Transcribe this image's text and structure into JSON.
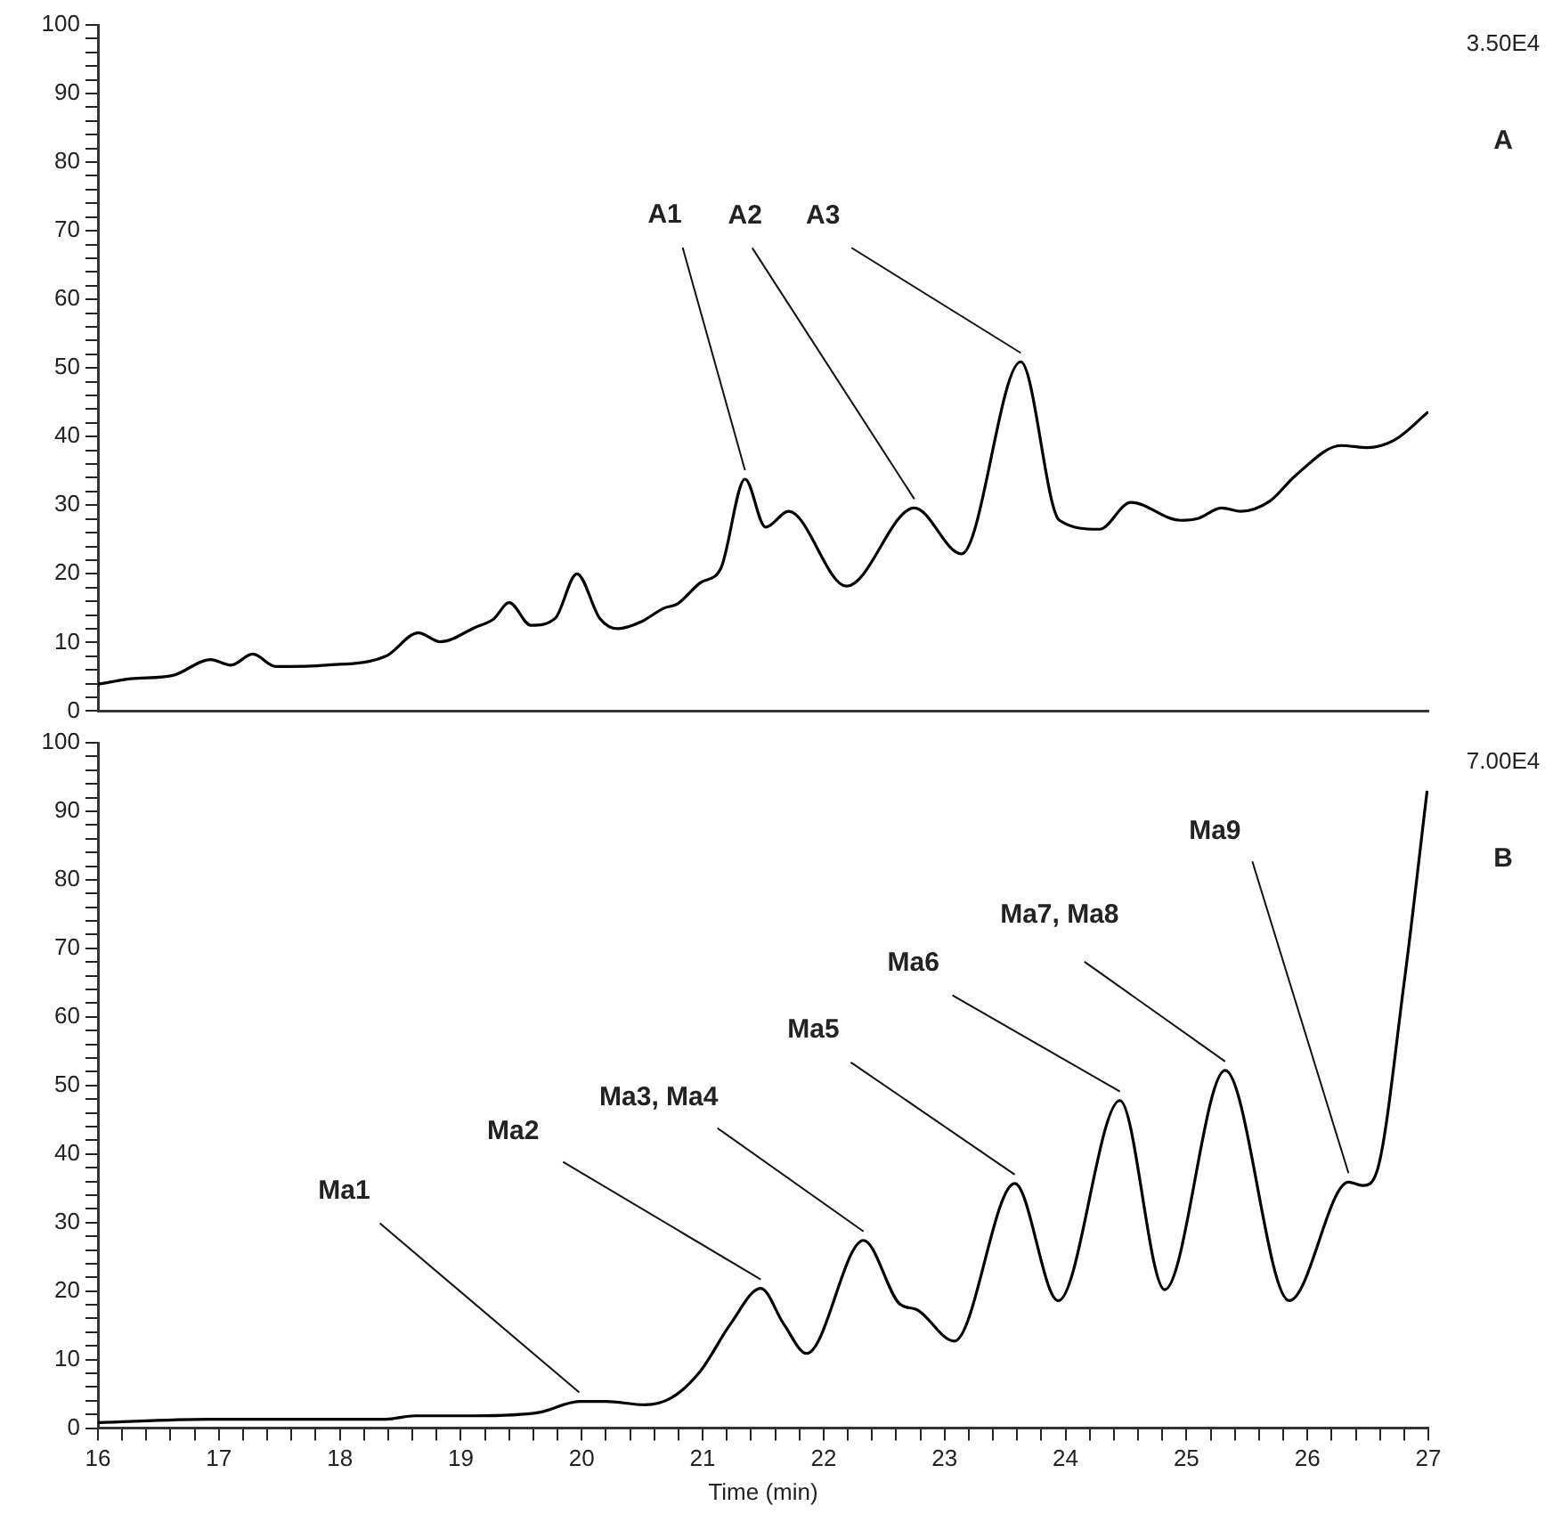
{
  "chart_data": [
    {
      "type": "line",
      "xlim": [
        16,
        27
      ],
      "ylim": [
        0,
        100
      ],
      "tick_labels": "y",
      "grid": false,
      "legend": false,
      "marker": "none",
      "line_style": "solid",
      "yticks": [
        0,
        {
          "value": 2,
          "label": null
        },
        {
          "value": 4,
          "label": null
        },
        {
          "value": 6,
          "label": null
        },
        {
          "value": 8,
          "label": null
        },
        10,
        {
          "value": 12,
          "label": null
        },
        {
          "value": 14,
          "label": null
        },
        {
          "value": 16,
          "label": null
        },
        {
          "value": 18,
          "label": null
        },
        20,
        {
          "value": 22,
          "label": null
        },
        {
          "value": 24,
          "label": null
        },
        {
          "value": 26,
          "label": null
        },
        {
          "value": 28,
          "label": null
        },
        30,
        {
          "value": 32,
          "label": null
        },
        {
          "value": 34,
          "label": null
        },
        {
          "value": 36,
          "label": null
        },
        {
          "value": 38,
          "label": null
        },
        40,
        {
          "value": 42,
          "label": null
        },
        {
          "value": 44,
          "label": null
        },
        {
          "value": 46,
          "label": null
        },
        {
          "value": 48,
          "label": null
        },
        50,
        {
          "value": 52,
          "label": null
        },
        {
          "value": 54,
          "label": null
        },
        {
          "value": 56,
          "label": null
        },
        {
          "value": 58,
          "label": null
        },
        60,
        {
          "value": 62,
          "label": null
        },
        {
          "value": 64,
          "label": null
        },
        {
          "value": 66,
          "label": null
        },
        {
          "value": 68,
          "label": null
        },
        70,
        {
          "value": 72,
          "label": null
        },
        {
          "value": 74,
          "label": null
        },
        {
          "value": 76,
          "label": null
        },
        {
          "value": 78,
          "label": null
        },
        80,
        {
          "value": 82,
          "label": null
        },
        {
          "value": 84,
          "label": null
        },
        {
          "value": 86,
          "label": null
        },
        {
          "value": 88,
          "label": null
        },
        90,
        {
          "value": 92,
          "label": null
        },
        {
          "value": 94,
          "label": null
        },
        {
          "value": 96,
          "label": null
        },
        {
          "value": 98,
          "label": null
        },
        100
      ],
      "series": [
        {
          "color": "#000000",
          "x": [
            16,
            16.27,
            16.62,
            16.93,
            17.1,
            17.28,
            17.47,
            17.89,
            18.38,
            18.65,
            18.83,
            19.12,
            19.27,
            19.4,
            19.58,
            19.78,
            19.96,
            20.15,
            20.3,
            20.49,
            20.68,
            20.79,
            20.98,
            21.15,
            21.35,
            21.52,
            21.71,
            22.19,
            22.75,
            23.14,
            23.63,
            23.95,
            24.28,
            24.54,
            24.95,
            25.1,
            25.29,
            25.45,
            25.69,
            25.9,
            26.28,
            26.49,
            26.72,
            27
          ],
          "values": [
            3.9,
            4.7,
            5.2,
            7.5,
            6.7,
            8.3,
            6.5,
            6.7,
            8,
            11.4,
            10.1,
            12.2,
            13.4,
            15.8,
            12.5,
            13.5,
            20,
            13.5,
            12,
            13,
            15,
            15.6,
            18.7,
            20.8,
            33.8,
            26.8,
            29.1,
            18.2,
            29.6,
            22.9,
            50.9,
            27.8,
            26.5,
            30.4,
            27.8,
            28.1,
            29.6,
            29.1,
            30.6,
            34.3,
            38.7,
            38.4,
            39.5,
            43.6
          ]
        }
      ],
      "annotations": [
        "3.50E4",
        "A",
        {
          "text": "A1",
          "x": 21.35,
          "y": 33.8
        },
        {
          "text": "A2",
          "x": 22.75,
          "y": 29.6
        },
        {
          "text": "A3",
          "x": 23.63,
          "y": 50.9
        }
      ]
    },
    {
      "type": "line",
      "xlim": [
        16,
        27
      ],
      "ylim": [
        0,
        100
      ],
      "xlabel": "Time (min)",
      "grid": false,
      "legend": false,
      "marker": "none",
      "line_style": "solid",
      "xticks": [
        16,
        {
          "value": 16.2,
          "label": null
        },
        {
          "value": 16.4,
          "label": null
        },
        {
          "value": 16.6,
          "label": null
        },
        {
          "value": 16.8,
          "label": null
        },
        17,
        {
          "value": 17.2,
          "label": null
        },
        {
          "value": 17.4,
          "label": null
        },
        {
          "value": 17.6,
          "label": null
        },
        {
          "value": 17.8,
          "label": null
        },
        18,
        {
          "value": 18.2,
          "label": null
        },
        {
          "value": 18.4,
          "label": null
        },
        {
          "value": 18.6,
          "label": null
        },
        {
          "value": 18.8,
          "label": null
        },
        19,
        {
          "value": 19.2,
          "label": null
        },
        {
          "value": 19.4,
          "label": null
        },
        {
          "value": 19.6,
          "label": null
        },
        {
          "value": 19.8,
          "label": null
        },
        20,
        {
          "value": 20.2,
          "label": null
        },
        {
          "value": 20.4,
          "label": null
        },
        {
          "value": 20.6,
          "label": null
        },
        {
          "value": 20.8,
          "label": null
        },
        21,
        {
          "value": 21.2,
          "label": null
        },
        {
          "value": 21.4,
          "label": null
        },
        {
          "value": 21.6,
          "label": null
        },
        {
          "value": 21.8,
          "label": null
        },
        22,
        {
          "value": 22.2,
          "label": null
        },
        {
          "value": 22.4,
          "label": null
        },
        {
          "value": 22.6,
          "label": null
        },
        {
          "value": 22.8,
          "label": null
        },
        23,
        {
          "value": 23.2,
          "label": null
        },
        {
          "value": 23.4,
          "label": null
        },
        {
          "value": 23.6,
          "label": null
        },
        {
          "value": 23.8,
          "label": null
        },
        24,
        {
          "value": 24.2,
          "label": null
        },
        {
          "value": 24.4,
          "label": null
        },
        {
          "value": 24.6,
          "label": null
        },
        {
          "value": 24.8,
          "label": null
        },
        25,
        {
          "value": 25.2,
          "label": null
        },
        {
          "value": 25.4,
          "label": null
        },
        {
          "value": 25.6,
          "label": null
        },
        {
          "value": 25.8,
          "label": null
        },
        26,
        {
          "value": 26.2,
          "label": null
        },
        {
          "value": 26.4,
          "label": null
        },
        {
          "value": 26.6,
          "label": null
        },
        {
          "value": 26.8,
          "label": null
        },
        27
      ],
      "yticks": [
        0,
        {
          "value": 2,
          "label": null
        },
        {
          "value": 4,
          "label": null
        },
        {
          "value": 6,
          "label": null
        },
        {
          "value": 8,
          "label": null
        },
        10,
        {
          "value": 12,
          "label": null
        },
        {
          "value": 14,
          "label": null
        },
        {
          "value": 16,
          "label": null
        },
        {
          "value": 18,
          "label": null
        },
        20,
        {
          "value": 22,
          "label": null
        },
        {
          "value": 24,
          "label": null
        },
        {
          "value": 26,
          "label": null
        },
        {
          "value": 28,
          "label": null
        },
        30,
        {
          "value": 32,
          "label": null
        },
        {
          "value": 34,
          "label": null
        },
        {
          "value": 36,
          "label": null
        },
        {
          "value": 38,
          "label": null
        },
        40,
        {
          "value": 42,
          "label": null
        },
        {
          "value": 44,
          "label": null
        },
        {
          "value": 46,
          "label": null
        },
        {
          "value": 48,
          "label": null
        },
        50,
        {
          "value": 52,
          "label": null
        },
        {
          "value": 54,
          "label": null
        },
        {
          "value": 56,
          "label": null
        },
        {
          "value": 58,
          "label": null
        },
        60,
        {
          "value": 62,
          "label": null
        },
        {
          "value": 64,
          "label": null
        },
        {
          "value": 66,
          "label": null
        },
        {
          "value": 68,
          "label": null
        },
        70,
        {
          "value": 72,
          "label": null
        },
        {
          "value": 74,
          "label": null
        },
        {
          "value": 76,
          "label": null
        },
        {
          "value": 78,
          "label": null
        },
        80,
        {
          "value": 82,
          "label": null
        },
        {
          "value": 84,
          "label": null
        },
        {
          "value": 86,
          "label": null
        },
        {
          "value": 88,
          "label": null
        },
        90,
        {
          "value": 92,
          "label": null
        },
        {
          "value": 94,
          "label": null
        },
        {
          "value": 96,
          "label": null
        },
        {
          "value": 98,
          "label": null
        },
        100
      ],
      "series": [
        {
          "color": "#000000",
          "x": [
            16,
            16.91,
            18.38,
            18.62,
            19.12,
            19.65,
            19.98,
            20.2,
            20.52,
            20.74,
            20.98,
            21.23,
            21.48,
            21.67,
            21.86,
            22.33,
            22.63,
            22.77,
            23.08,
            23.58,
            23.94,
            24.45,
            24.82,
            25.32,
            25.85,
            26.34,
            26.46,
            26.57,
            26.8,
            26.99
          ],
          "values": [
            0.8,
            1.3,
            1.3,
            1.8,
            1.8,
            2.3,
            3.9,
            3.9,
            3.4,
            4.4,
            8.3,
            15.2,
            20.4,
            15.2,
            10.9,
            27.4,
            18.1,
            17.3,
            12.7,
            35.7,
            18.6,
            47.8,
            20.2,
            52.2,
            18.6,
            35.9,
            35.4,
            37.2,
            65,
            93
          ]
        }
      ],
      "annotations": [
        "7.00E4",
        "B",
        {
          "text": "Ma1",
          "x": 19.98,
          "y": 3.9
        },
        {
          "text": "Ma2",
          "x": 21.48,
          "y": 20.4
        },
        {
          "text": "Ma3, Ma4",
          "x": 22.33,
          "y": 27.4
        },
        {
          "text": "Ma5",
          "x": 23.58,
          "y": 35.7
        },
        {
          "text": "Ma6",
          "x": 24.45,
          "y": 47.8
        },
        {
          "text": "Ma7, Ma8",
          "x": 25.32,
          "y": 52.2
        },
        {
          "text": "Ma9",
          "x": 26.34,
          "y": 35.9
        }
      ]
    }
  ]
}
